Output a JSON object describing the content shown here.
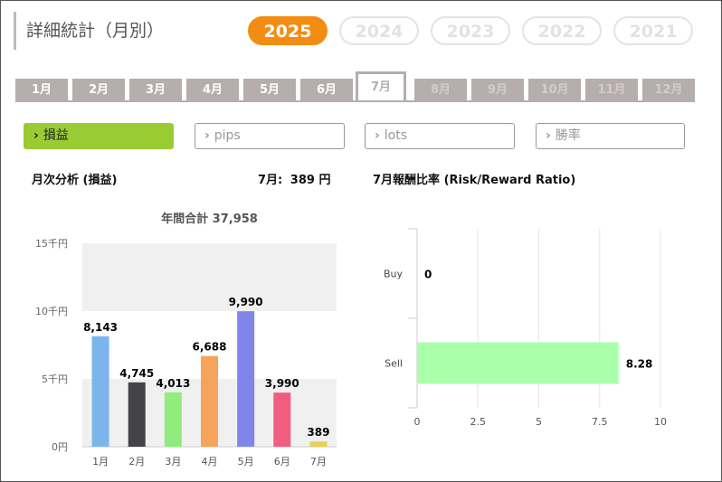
{
  "page_title": "詳細統計（月別）",
  "years": [
    {
      "label": "2025",
      "active": true
    },
    {
      "label": "2024",
      "active": false
    },
    {
      "label": "2023",
      "active": false
    },
    {
      "label": "2022",
      "active": false
    },
    {
      "label": "2021",
      "active": false
    }
  ],
  "months": [
    {
      "label": "1月",
      "state": "past"
    },
    {
      "label": "2月",
      "state": "past"
    },
    {
      "label": "3月",
      "state": "past"
    },
    {
      "label": "4月",
      "state": "past"
    },
    {
      "label": "5月",
      "state": "past"
    },
    {
      "label": "6月",
      "state": "past"
    },
    {
      "label": "7月",
      "state": "active"
    },
    {
      "label": "8月",
      "state": "future"
    },
    {
      "label": "9月",
      "state": "future"
    },
    {
      "label": "10月",
      "state": "future"
    },
    {
      "label": "11月",
      "state": "future"
    },
    {
      "label": "12月",
      "state": "future"
    }
  ],
  "metric_buttons": [
    {
      "label": "損益",
      "active": true
    },
    {
      "label": "pips",
      "active": false
    },
    {
      "label": "lots",
      "active": false
    },
    {
      "label": "勝率",
      "active": false
    }
  ],
  "monthly_section": {
    "title": "月次分析 (損益)",
    "current_month_label": "7月:",
    "current_month_value": "389 円"
  },
  "ratio_section": {
    "title": "7月報酬比率 (Risk/Reward Ratio)"
  },
  "colors": {
    "accent": "#f28c12",
    "metric_active": "#99cc33",
    "tab": "#b6adad"
  },
  "chart_data": [
    {
      "type": "bar",
      "title": "年間合計 37,958",
      "categories": [
        "1月",
        "2月",
        "3月",
        "4月",
        "5月",
        "6月",
        "7月"
      ],
      "values": [
        8143,
        4745,
        4013,
        6688,
        9990,
        3990,
        389
      ],
      "value_labels": [
        "8,143",
        "4,745",
        "4,013",
        "6,688",
        "9,990",
        "3,990",
        "389"
      ],
      "colors": [
        "#7cb5ec",
        "#434348",
        "#90ed7d",
        "#f7a35c",
        "#8085e9",
        "#f15c80",
        "#e4d354"
      ],
      "ylim": [
        0,
        15000
      ],
      "y_ticks": [
        {
          "value": 0,
          "label": "0円"
        },
        {
          "value": 5000,
          "label": "5千円"
        },
        {
          "value": 10000,
          "label": "10千円"
        },
        {
          "value": 15000,
          "label": "15千円"
        }
      ],
      "grid": "alternating bands"
    },
    {
      "type": "bar",
      "orientation": "horizontal",
      "categories": [
        "Buy",
        "Sell"
      ],
      "values": [
        0,
        8.28
      ],
      "value_labels": [
        "0",
        "8.28"
      ],
      "color": "#aaffaa",
      "xlim": [
        0,
        10
      ],
      "x_ticks": [
        "0",
        "2.5",
        "5",
        "7.5",
        "10"
      ],
      "grid": "vertical lines"
    }
  ]
}
